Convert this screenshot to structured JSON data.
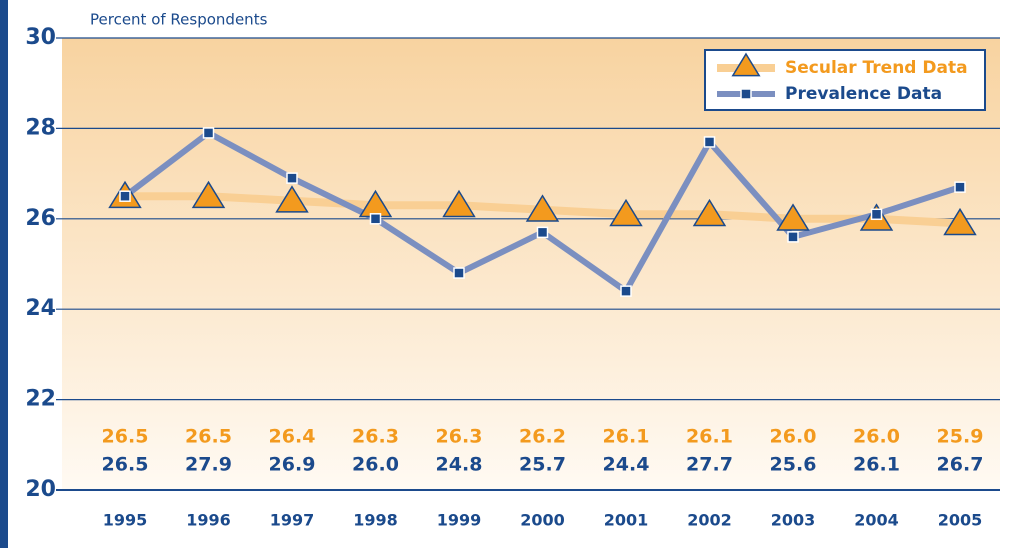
{
  "chart_data": {
    "type": "line",
    "ylabel": "Percent of Respondents",
    "categories": [
      "1995",
      "1996",
      "1997",
      "1998",
      "1999",
      "2000",
      "2001",
      "2002",
      "2003",
      "2004",
      "2005"
    ],
    "series": [
      {
        "name": "Secular Trend Data",
        "color": "#f39a1e",
        "line_color": "#f9cf94",
        "marker": "triangle",
        "values": [
          26.5,
          26.5,
          26.4,
          26.3,
          26.3,
          26.2,
          26.1,
          26.1,
          26.0,
          26.0,
          25.9
        ],
        "value_labels": [
          "26.5",
          "26.5",
          "26.4",
          "26.3",
          "26.3",
          "26.2",
          "26.1",
          "26.1",
          "26.0",
          "26.0",
          "25.9"
        ]
      },
      {
        "name": "Prevalence Data",
        "color": "#1b4a8c",
        "line_color": "#7b8fc0",
        "marker": "square",
        "values": [
          26.5,
          27.9,
          26.9,
          26.0,
          24.8,
          25.7,
          24.4,
          27.7,
          25.6,
          26.1,
          26.7
        ],
        "value_labels": [
          "26.5",
          "27.9",
          "26.9",
          "26.0",
          "24.8",
          "25.7",
          "24.4",
          "27.7",
          "25.6",
          "26.1",
          "26.7"
        ]
      }
    ],
    "ylim": [
      20,
      30
    ],
    "yticks": [
      20,
      22,
      24,
      26,
      28,
      30
    ],
    "grid": true,
    "legend": "upper right"
  }
}
